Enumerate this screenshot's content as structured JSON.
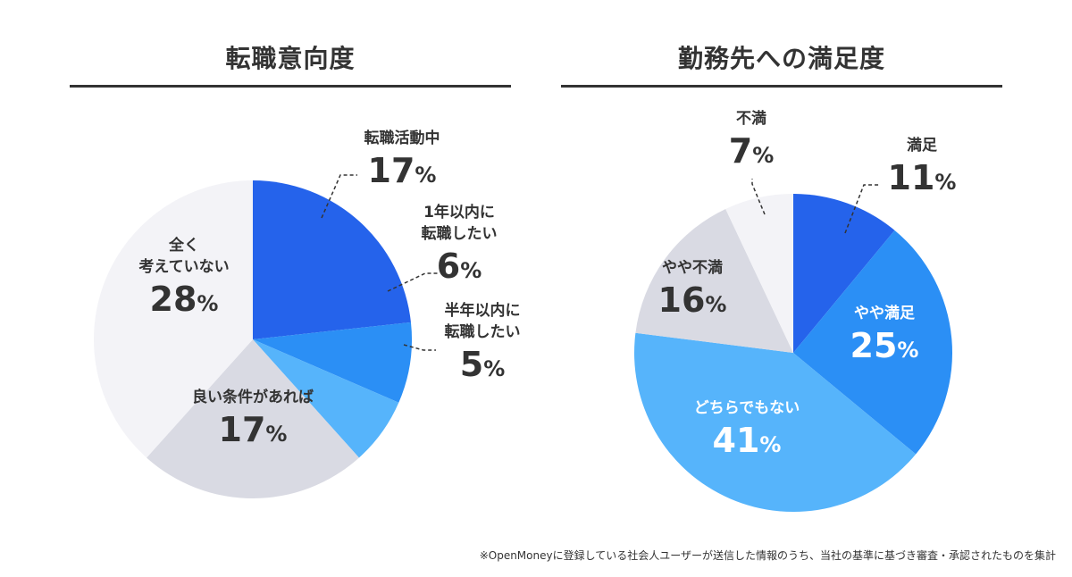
{
  "chart_data": [
    {
      "type": "pie",
      "title": "転職意向度",
      "slices": [
        {
          "label": [
            "転職活動中"
          ],
          "value": 17,
          "color": "#2563eb"
        },
        {
          "label": [
            "1年以内に",
            "転職したい"
          ],
          "value": 6,
          "color": "#2b8ff5"
        },
        {
          "label": [
            "半年以内に",
            "転職したい"
          ],
          "value": 5,
          "color": "#56b4fb"
        },
        {
          "label": [
            "良い条件があれば"
          ],
          "value": 17,
          "color": "#d9dae3"
        },
        {
          "label": [
            "全く",
            "考えていない"
          ],
          "value": 28,
          "color": "#f3f3f7"
        }
      ]
    },
    {
      "type": "pie",
      "title": "勤務先への満足度",
      "slices": [
        {
          "label": [
            "満足"
          ],
          "value": 11,
          "color": "#2563eb"
        },
        {
          "label": [
            "やや満足"
          ],
          "value": 25,
          "color": "#2b8ff5"
        },
        {
          "label": [
            "どちらでもない"
          ],
          "value": 41,
          "color": "#56b4fb"
        },
        {
          "label": [
            "やや不満"
          ],
          "value": 16,
          "color": "#d9dae3"
        },
        {
          "label": [
            "不満"
          ],
          "value": 7,
          "color": "#f3f3f7"
        }
      ]
    }
  ],
  "percent_suffix": "%",
  "footnote": "※OpenMoneyに登録している社会人ユーザーが送信した情報のうち、当社の基準に基づき審査・承認されたものを集計"
}
